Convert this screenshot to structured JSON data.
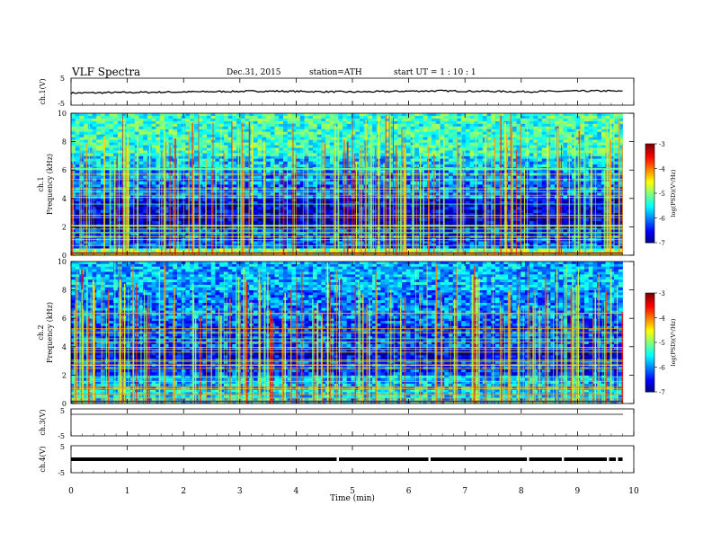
{
  "header": {
    "title": "VLF  Spectra",
    "date": "Dec.31, 2015",
    "station": "station=ATH",
    "start": "start  UT =   1 : 10 : 1"
  },
  "chart_data": [
    {
      "type": "line",
      "id": "ch1",
      "ylabel": "ch.1(V)",
      "ylim": [
        -5,
        5
      ],
      "yticks": [
        "5",
        "-5"
      ],
      "description_level": 0,
      "x": [
        0,
        0.5,
        1,
        1.5,
        2,
        2.5,
        3,
        3.5,
        4,
        4.5,
        5,
        5.5,
        6,
        6.5,
        7,
        7.5,
        8,
        8.5,
        9,
        9.5,
        9.8
      ],
      "y": [
        -0.5,
        -0.4,
        -0.3,
        -0.2,
        -0.1,
        0,
        0.1,
        0.2,
        0.1,
        0,
        -0.1,
        0,
        0.2,
        0.3,
        0.2,
        0.1,
        0,
        0.1,
        0.2,
        0.3,
        0.1
      ]
    },
    {
      "type": "heatmap",
      "id": "ch1-spec",
      "ylabel": "Frequency  (kHz)",
      "channel": "ch.1",
      "ylim": [
        0,
        10
      ],
      "yticks": [
        "0",
        "2",
        "4",
        "6",
        "8",
        "10"
      ],
      "colorbar": {
        "label": "log(PSD)(V²/Hz)",
        "ticks": [
          "-3",
          "-4",
          "-5",
          "-6",
          "-7"
        ],
        "range": [
          -7,
          -3
        ]
      },
      "bands": [
        {
          "freq": [
            0,
            0.5
          ],
          "level": -5.0
        },
        {
          "freq": [
            0.5,
            1.0
          ],
          "level": -6.2
        },
        {
          "freq": [
            1.0,
            2.0
          ],
          "level": -6.3
        },
        {
          "freq": [
            2.0,
            3.0
          ],
          "level": -6.7
        },
        {
          "freq": [
            3.0,
            4.0
          ],
          "level": -6.6
        },
        {
          "freq": [
            4.0,
            5.0
          ],
          "level": -6.1
        },
        {
          "freq": [
            5.0,
            6.0
          ],
          "level": -6.0
        },
        {
          "freq": [
            6.0,
            7.0
          ],
          "level": -5.7
        },
        {
          "freq": [
            7.0,
            10.0
          ],
          "level": -5.3
        }
      ]
    },
    {
      "type": "heatmap",
      "id": "ch2-spec",
      "ylabel": "Frequency  (kHz)",
      "channel": "ch.2",
      "ylim": [
        0,
        10
      ],
      "yticks": [
        "0",
        "2",
        "4",
        "6",
        "8",
        "10"
      ],
      "colorbar": {
        "label": "log(PSD)(V²/Hz)",
        "ticks": [
          "-3",
          "-4",
          "-5",
          "-6",
          "-7"
        ],
        "range": [
          -7,
          -3
        ]
      },
      "bands": [
        {
          "freq": [
            0,
            1.0
          ],
          "level": -5.6
        },
        {
          "freq": [
            1.0,
            2.0
          ],
          "level": -5.8
        },
        {
          "freq": [
            2.0,
            3.0
          ],
          "level": -6.3
        },
        {
          "freq": [
            3.0,
            4.0
          ],
          "level": -6.6
        },
        {
          "freq": [
            4.0,
            6.0
          ],
          "level": -6.2
        },
        {
          "freq": [
            6.0,
            8.0
          ],
          "level": -6.0
        },
        {
          "freq": [
            8.0,
            10.0
          ],
          "level": -5.8
        }
      ]
    },
    {
      "type": "line",
      "id": "ch3",
      "ylabel": "ch.3(V)",
      "ylim": [
        -5,
        5
      ],
      "yticks": [
        "5",
        "-5"
      ],
      "x": [
        0,
        9.8
      ],
      "y": [
        5,
        5
      ]
    },
    {
      "type": "line",
      "id": "ch4",
      "ylabel": "ch.4(V)",
      "ylim": [
        -5,
        5
      ],
      "yticks": [
        "5",
        "-5"
      ],
      "x": [
        0,
        9.8
      ],
      "y": [
        0,
        0
      ]
    }
  ],
  "xaxis": {
    "label": "Time  (min)",
    "range": [
      0,
      10
    ],
    "ticks": [
      "0",
      "1",
      "2",
      "3",
      "4",
      "5",
      "6",
      "7",
      "8",
      "9",
      "10"
    ]
  }
}
